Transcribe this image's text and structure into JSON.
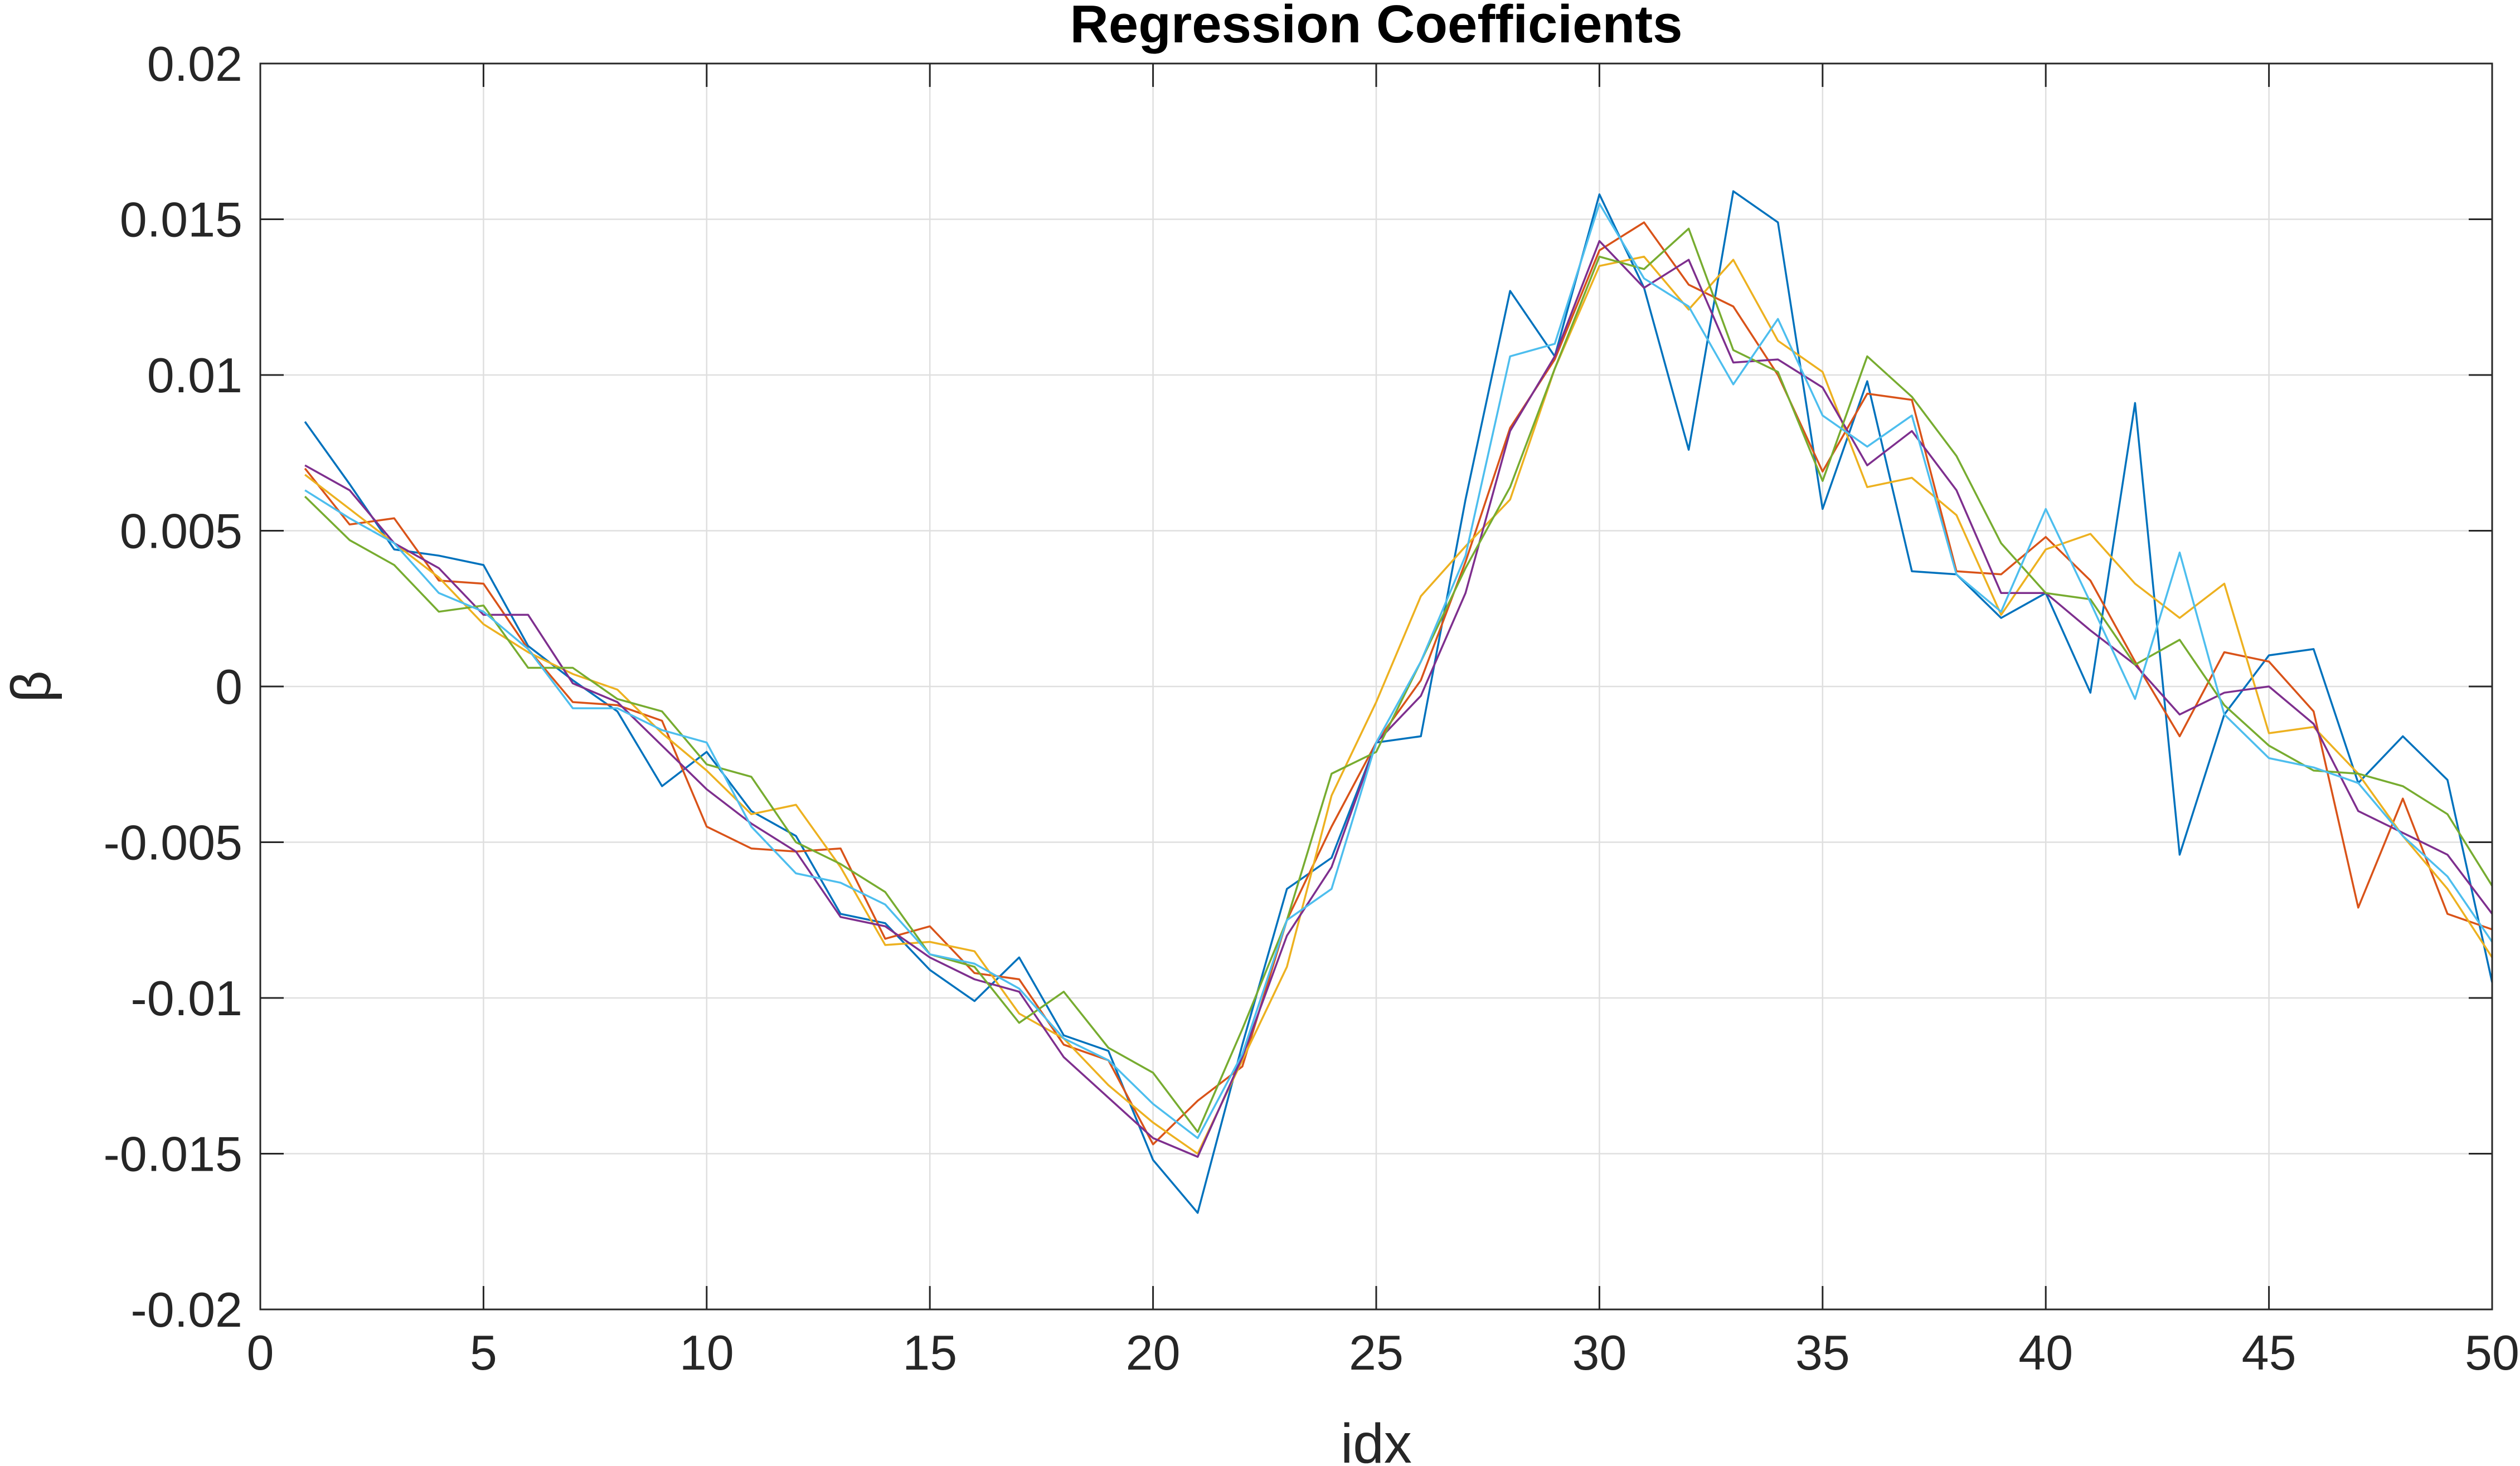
{
  "chart_data": {
    "type": "line",
    "title": "Regression Coefficients",
    "xlabel": "idx",
    "ylabel": "β",
    "xlim": [
      0,
      50
    ],
    "ylim": [
      -0.02,
      0.02
    ],
    "grid": true,
    "x_ticks": [
      0,
      5,
      10,
      15,
      20,
      25,
      30,
      35,
      40,
      45,
      50
    ],
    "x_tick_labels": [
      "0",
      "5",
      "10",
      "15",
      "20",
      "25",
      "30",
      "35",
      "40",
      "45",
      "50"
    ],
    "y_ticks": [
      -0.02,
      -0.015,
      -0.01,
      -0.005,
      0,
      0.005,
      0.01,
      0.015,
      0.02
    ],
    "y_tick_labels": [
      "-0.02",
      "-0.015",
      "-0.01",
      "-0.005",
      "0",
      "0.005",
      "0.01",
      "0.015",
      "0.02"
    ],
    "x": [
      1,
      2,
      3,
      4,
      5,
      6,
      7,
      8,
      9,
      10,
      11,
      12,
      13,
      14,
      15,
      16,
      17,
      18,
      19,
      20,
      21,
      22,
      23,
      24,
      25,
      26,
      27,
      28,
      29,
      30,
      31,
      32,
      33,
      34,
      35,
      36,
      37,
      38,
      39,
      40,
      41,
      42,
      43,
      44,
      45,
      46,
      47,
      48,
      49,
      50
    ],
    "series": [
      {
        "color": "#0072BD",
        "values": [
          0.0085,
          0.0065,
          0.0044,
          0.0042,
          0.0039,
          0.0013,
          0.0002,
          -0.0008,
          -0.0032,
          -0.0021,
          -0.004,
          -0.0048,
          -0.0073,
          -0.0076,
          -0.0091,
          -0.0101,
          -0.0087,
          -0.0112,
          -0.0117,
          -0.0152,
          -0.0169,
          -0.0115,
          -0.0065,
          -0.0055,
          -0.0018,
          -0.0016,
          0.006,
          0.0127,
          0.0106,
          0.0158,
          0.0128,
          0.0076,
          0.0159,
          0.0149,
          0.0057,
          0.0098,
          0.0037,
          0.0036,
          0.0022,
          0.003,
          -0.0002,
          0.0091,
          -0.0054,
          -0.0009,
          0.001,
          0.0012,
          -0.0031,
          -0.0016,
          -0.003,
          -0.0095
        ]
      },
      {
        "color": "#D95319",
        "values": [
          0.007,
          0.0052,
          0.0054,
          0.0034,
          0.0033,
          0.0012,
          -0.0005,
          -0.0006,
          -0.0011,
          -0.0045,
          -0.0052,
          -0.0053,
          -0.0052,
          -0.0081,
          -0.0077,
          -0.0092,
          -0.0094,
          -0.0115,
          -0.012,
          -0.0147,
          -0.0133,
          -0.0122,
          -0.0075,
          -0.0045,
          -0.0018,
          0.0002,
          0.004,
          0.0083,
          0.0105,
          0.014,
          0.0149,
          0.0129,
          0.0122,
          0.01,
          0.0069,
          0.0094,
          0.0092,
          0.0037,
          0.0036,
          0.0048,
          0.0034,
          0.0008,
          -0.0016,
          0.0011,
          0.0008,
          -0.0008,
          -0.0071,
          -0.0036,
          -0.0073,
          -0.0078
        ]
      },
      {
        "color": "#EDB120",
        "values": [
          0.0068,
          0.0057,
          0.0046,
          0.0035,
          0.002,
          0.0011,
          0.0004,
          -0.0001,
          -0.0015,
          -0.0027,
          -0.0041,
          -0.0038,
          -0.0058,
          -0.0083,
          -0.0082,
          -0.0085,
          -0.0105,
          -0.0113,
          -0.0128,
          -0.014,
          -0.015,
          -0.012,
          -0.009,
          -0.0035,
          -0.0005,
          0.0029,
          0.0045,
          0.006,
          0.0102,
          0.0135,
          0.0138,
          0.0121,
          0.0137,
          0.0111,
          0.0101,
          0.0064,
          0.0067,
          0.0055,
          0.0023,
          0.0044,
          0.0049,
          0.0033,
          0.0022,
          0.0033,
          -0.0015,
          -0.0013,
          -0.0028,
          -0.0048,
          -0.0065,
          -0.0087
        ]
      },
      {
        "color": "#7E2F8E",
        "values": [
          0.0071,
          0.0063,
          0.0046,
          0.0038,
          0.0023,
          0.0023,
          0.0001,
          -0.0005,
          -0.0019,
          -0.0033,
          -0.0044,
          -0.0053,
          -0.0074,
          -0.0077,
          -0.0087,
          -0.0094,
          -0.0098,
          -0.0119,
          -0.0132,
          -0.0145,
          -0.0151,
          -0.0119,
          -0.008,
          -0.0058,
          -0.0018,
          -0.0003,
          0.003,
          0.0082,
          0.0106,
          0.0143,
          0.0128,
          0.0137,
          0.0104,
          0.0105,
          0.0096,
          0.0071,
          0.0082,
          0.0063,
          0.003,
          0.003,
          0.0018,
          0.0007,
          -0.0009,
          -0.0002,
          0.0,
          -0.0012,
          -0.004,
          -0.0047,
          -0.0054,
          -0.0073
        ]
      },
      {
        "color": "#77AC30",
        "values": [
          0.0061,
          0.0047,
          0.0039,
          0.0024,
          0.0026,
          0.0006,
          0.0006,
          -0.0004,
          -0.0008,
          -0.0025,
          -0.0029,
          -0.005,
          -0.0057,
          -0.0066,
          -0.0086,
          -0.009,
          -0.0108,
          -0.0098,
          -0.0116,
          -0.0124,
          -0.0143,
          -0.011,
          -0.0075,
          -0.0028,
          -0.0021,
          0.0008,
          0.0038,
          0.0064,
          0.0102,
          0.0138,
          0.0134,
          0.0147,
          0.0108,
          0.0101,
          0.0066,
          0.0106,
          0.0093,
          0.0074,
          0.0046,
          0.003,
          0.0028,
          0.0007,
          0.0015,
          -0.0006,
          -0.0019,
          -0.0027,
          -0.0028,
          -0.0032,
          -0.0041,
          -0.0064
        ]
      },
      {
        "color": "#4DBEEE",
        "values": [
          0.0063,
          0.0054,
          0.0046,
          0.003,
          0.0024,
          0.0012,
          -0.0007,
          -0.0007,
          -0.0014,
          -0.0018,
          -0.0045,
          -0.006,
          -0.0063,
          -0.007,
          -0.0086,
          -0.0089,
          -0.0097,
          -0.0113,
          -0.012,
          -0.0134,
          -0.0145,
          -0.0118,
          -0.0075,
          -0.0065,
          -0.0018,
          0.0008,
          0.0042,
          0.0106,
          0.011,
          0.0155,
          0.0131,
          0.0122,
          0.0097,
          0.0118,
          0.0087,
          0.0077,
          0.0087,
          0.0036,
          0.0024,
          0.0057,
          0.0027,
          -0.0004,
          0.0043,
          -0.0009,
          -0.0023,
          -0.0026,
          -0.0031,
          -0.0048,
          -0.0061,
          -0.0082
        ]
      }
    ]
  }
}
